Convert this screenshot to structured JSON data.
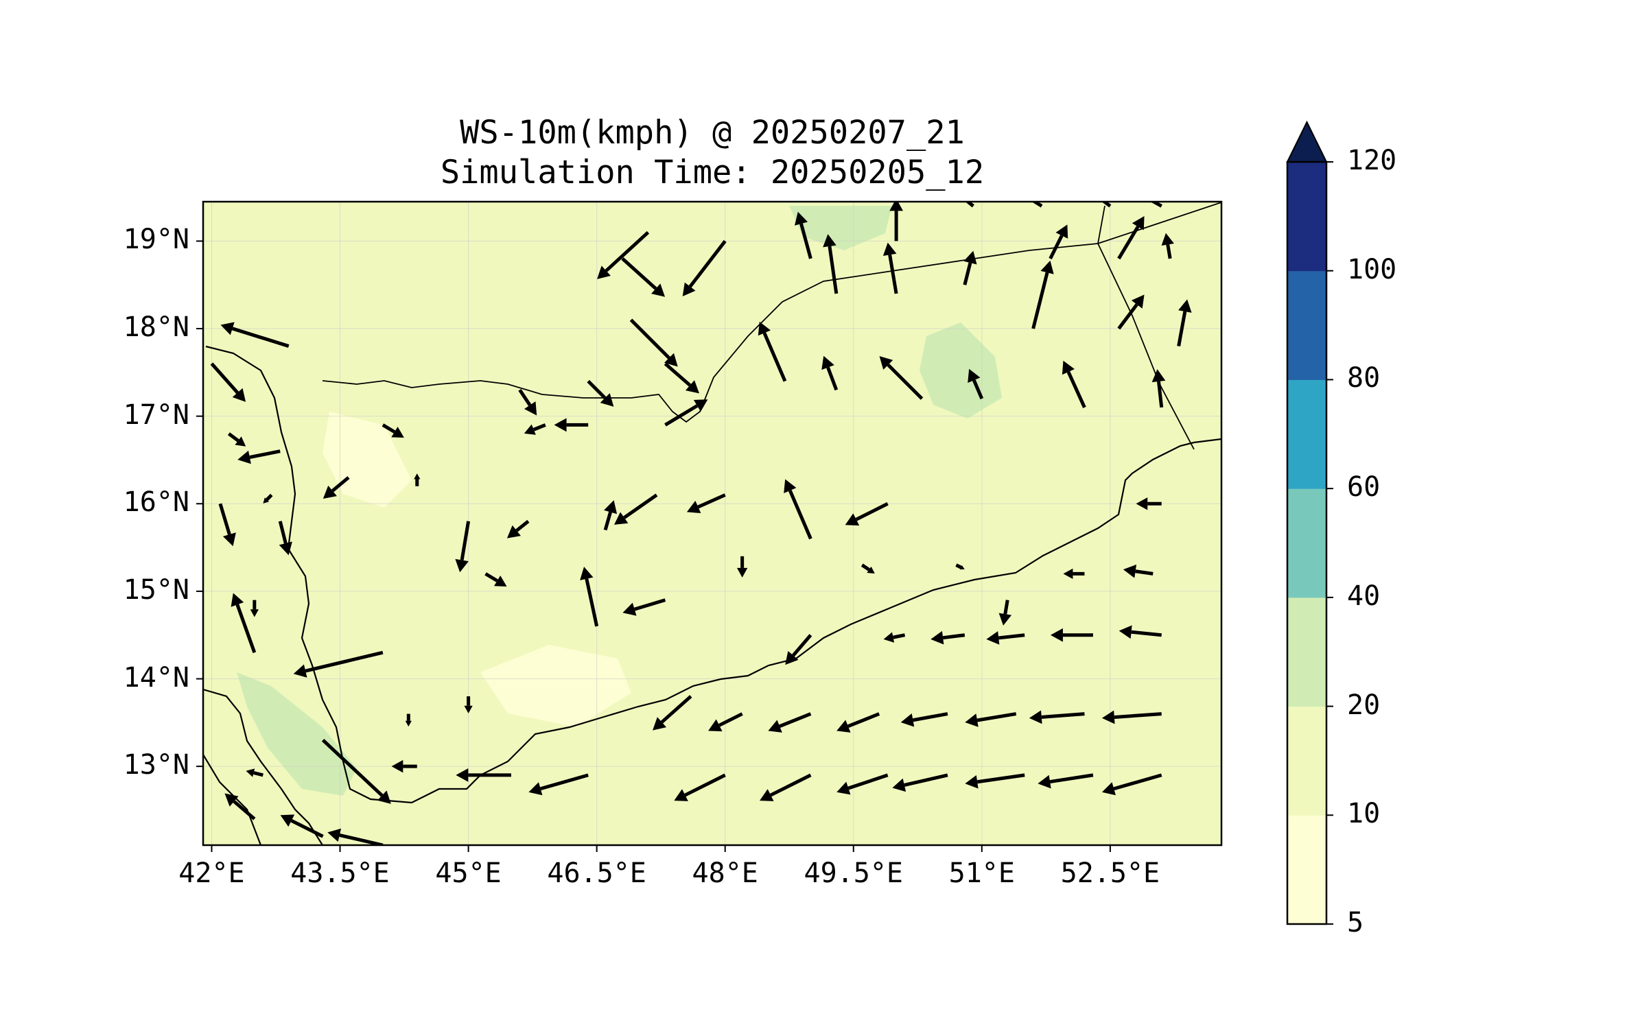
{
  "title": {
    "line1": "WS-10m(kmph) @ 20250207_21",
    "line2": "Simulation Time: 20250205_12"
  },
  "map": {
    "extent": {
      "lon": [
        41.9,
        53.8
      ],
      "lat": [
        12.1,
        19.45
      ]
    },
    "lat_ticks": [
      {
        "value": 19,
        "label": "19°N"
      },
      {
        "value": 18,
        "label": "18°N"
      },
      {
        "value": 17,
        "label": "17°N"
      },
      {
        "value": 16,
        "label": "16°N"
      },
      {
        "value": 15,
        "label": "15°N"
      },
      {
        "value": 14,
        "label": "14°N"
      },
      {
        "value": 13,
        "label": "13°N"
      }
    ],
    "lon_ticks": [
      {
        "value": 42,
        "label": "42°E"
      },
      {
        "value": 43.5,
        "label": "43.5°E"
      },
      {
        "value": 45,
        "label": "45°E"
      },
      {
        "value": 46.5,
        "label": "46.5°E"
      },
      {
        "value": 48,
        "label": "48°E"
      },
      {
        "value": 49.5,
        "label": "49.5°E"
      },
      {
        "value": 51,
        "label": "51°E"
      },
      {
        "value": 52.5,
        "label": "52.5°E"
      }
    ],
    "background_class_color": "#f0f8be",
    "shaded_regions": [
      {
        "level": "20-40",
        "color": "#d0ecb4",
        "name": "coastal-red-sea-strip"
      },
      {
        "level": "20-40",
        "color": "#d0ecb4",
        "name": "northern-desert-patch"
      },
      {
        "level": "20-40",
        "color": "#d0ecb4",
        "name": "eastern-interior-patch"
      },
      {
        "level": "5-10",
        "color": "#fdfed3",
        "name": "highland-low-wind-area"
      },
      {
        "level": "5-10",
        "color": "#fdfed3",
        "name": "southern-plateau-low-wind-area"
      }
    ]
  },
  "colorbar": {
    "levels": [
      {
        "from": 5,
        "to": 10,
        "color": "#fdfed3",
        "label": "5"
      },
      {
        "from": 10,
        "to": 20,
        "color": "#f0f8be",
        "label": "10"
      },
      {
        "from": 20,
        "to": 40,
        "color": "#d0ecb4",
        "label": "20"
      },
      {
        "from": 40,
        "to": 60,
        "color": "#78c9bb",
        "label": "40"
      },
      {
        "from": 60,
        "to": 80,
        "color": "#2fa5c5",
        "label": "60"
      },
      {
        "from": 80,
        "to": 100,
        "color": "#2563a8",
        "label": "80"
      },
      {
        "from": 100,
        "to": 120,
        "color": "#1c2c7f",
        "label": "100"
      }
    ],
    "top_label": "120",
    "extend_color": "#0c1e4f"
  },
  "chart_data": {
    "type": "vector-field",
    "title": "WS-10m(kmph) @ 20250207_21\nSimulation Time: 20250205_12",
    "units": "kmph",
    "quantity": "10 m wind speed with wind direction vectors",
    "xlabel": "",
    "ylabel": "",
    "xlim": [
      41.9,
      53.8
    ],
    "ylim": [
      12.1,
      19.45
    ],
    "contour_levels": [
      5,
      10,
      20,
      40,
      60,
      80,
      100,
      120
    ],
    "vectors": [
      {
        "lon": 42.0,
        "lat": 17.6,
        "u": 8,
        "v": -9
      },
      {
        "lon": 42.1,
        "lat": 16.0,
        "u": 3,
        "v": -10
      },
      {
        "lon": 42.2,
        "lat": 16.8,
        "u": 4,
        "v": -3
      },
      {
        "lon": 42.9,
        "lat": 17.8,
        "u": -16,
        "v": 5
      },
      {
        "lon": 42.8,
        "lat": 16.6,
        "u": -10,
        "v": -2
      },
      {
        "lon": 42.7,
        "lat": 16.1,
        "u": -2,
        "v": -2
      },
      {
        "lon": 42.8,
        "lat": 15.8,
        "u": 2,
        "v": -8
      },
      {
        "lon": 42.5,
        "lat": 14.9,
        "u": 0,
        "v": -4
      },
      {
        "lon": 42.5,
        "lat": 14.3,
        "u": -5,
        "v": 14
      },
      {
        "lon": 43.3,
        "lat": 13.3,
        "u": 16,
        "v": -15
      },
      {
        "lon": 42.6,
        "lat": 12.9,
        "u": -4,
        "v": 1
      },
      {
        "lon": 42.5,
        "lat": 12.4,
        "u": -7,
        "v": 6
      },
      {
        "lon": 43.3,
        "lat": 12.2,
        "u": -10,
        "v": 5
      },
      {
        "lon": 44.0,
        "lat": 14.3,
        "u": -21,
        "v": -5
      },
      {
        "lon": 44.3,
        "lat": 13.6,
        "u": 0,
        "v": -3
      },
      {
        "lon": 44.2,
        "lat": 13.0,
        "u": 0,
        "v": 0
      },
      {
        "lon": 44.0,
        "lat": 12.1,
        "u": -13,
        "v": 3
      },
      {
        "lon": 43.6,
        "lat": 16.3,
        "u": -6,
        "v": -5
      },
      {
        "lon": 44.0,
        "lat": 16.9,
        "u": 5,
        "v": -3
      },
      {
        "lon": 44.4,
        "lat": 16.2,
        "u": 0,
        "v": 3
      },
      {
        "lon": 45.0,
        "lat": 15.8,
        "u": -2,
        "v": -12
      },
      {
        "lon": 45.2,
        "lat": 15.2,
        "u": 5,
        "v": -3
      },
      {
        "lon": 45.0,
        "lat": 13.8,
        "u": 0,
        "v": -4
      },
      {
        "lon": 45.5,
        "lat": 12.9,
        "u": -13,
        "v": 0
      },
      {
        "lon": 46.4,
        "lat": 12.9,
        "u": -14,
        "v": -4
      },
      {
        "lon": 46.5,
        "lat": 14.6,
        "u": -3,
        "v": 14
      },
      {
        "lon": 45.7,
        "lat": 15.8,
        "u": -5,
        "v": -4
      },
      {
        "lon": 45.9,
        "lat": 16.9,
        "u": -5,
        "v": -2
      },
      {
        "lon": 46.4,
        "lat": 16.9,
        "u": -8,
        "v": 0
      },
      {
        "lon": 45.6,
        "lat": 17.3,
        "u": 4,
        "v": -6
      },
      {
        "lon": 46.4,
        "lat": 17.4,
        "u": 6,
        "v": -6
      },
      {
        "lon": 47.3,
        "lat": 16.9,
        "u": 10,
        "v": 6
      },
      {
        "lon": 47.3,
        "lat": 17.6,
        "u": 8,
        "v": -7
      },
      {
        "lon": 46.9,
        "lat": 18.1,
        "u": 11,
        "v": -11
      },
      {
        "lon": 46.8,
        "lat": 18.8,
        "u": 10,
        "v": -9
      },
      {
        "lon": 47.1,
        "lat": 19.1,
        "u": -12,
        "v": -11
      },
      {
        "lon": 48.0,
        "lat": 19.0,
        "u": -10,
        "v": -13
      },
      {
        "lon": 47.2,
        "lat": 16.1,
        "u": -10,
        "v": -7
      },
      {
        "lon": 46.6,
        "lat": 15.7,
        "u": 2,
        "v": 7
      },
      {
        "lon": 47.3,
        "lat": 14.9,
        "u": -10,
        "v": -3
      },
      {
        "lon": 48.2,
        "lat": 15.4,
        "u": 0,
        "v": -5
      },
      {
        "lon": 49.0,
        "lat": 15.6,
        "u": -6,
        "v": 14
      },
      {
        "lon": 48.0,
        "lat": 16.1,
        "u": -9,
        "v": -4
      },
      {
        "lon": 47.6,
        "lat": 13.8,
        "u": -9,
        "v": -8
      },
      {
        "lon": 48.0,
        "lat": 12.9,
        "u": -12,
        "v": -6
      },
      {
        "lon": 49.0,
        "lat": 12.9,
        "u": -12,
        "v": -6
      },
      {
        "lon": 49.9,
        "lat": 12.9,
        "u": -12,
        "v": -4
      },
      {
        "lon": 50.6,
        "lat": 12.9,
        "u": -13,
        "v": -3
      },
      {
        "lon": 51.5,
        "lat": 12.9,
        "u": -14,
        "v": -2
      },
      {
        "lon": 52.3,
        "lat": 12.9,
        "u": -13,
        "v": -2
      },
      {
        "lon": 53.1,
        "lat": 12.9,
        "u": -14,
        "v": -4
      },
      {
        "lon": 48.7,
        "lat": 17.4,
        "u": -6,
        "v": 14
      },
      {
        "lon": 49.3,
        "lat": 17.3,
        "u": -3,
        "v": 8
      },
      {
        "lon": 50.3,
        "lat": 17.2,
        "u": -10,
        "v": 10
      },
      {
        "lon": 49.3,
        "lat": 18.4,
        "u": -2,
        "v": 14
      },
      {
        "lon": 49.0,
        "lat": 18.8,
        "u": -3,
        "v": 11
      },
      {
        "lon": 50.0,
        "lat": 18.4,
        "u": -2,
        "v": 12
      },
      {
        "lon": 50.0,
        "lat": 19.0,
        "u": 0,
        "v": 10
      },
      {
        "lon": 50.9,
        "lat": 19.4,
        "u": -10,
        "v": 8
      },
      {
        "lon": 50.8,
        "lat": 18.5,
        "u": 2,
        "v": 8
      },
      {
        "lon": 51.0,
        "lat": 17.2,
        "u": -3,
        "v": 7
      },
      {
        "lon": 51.7,
        "lat": 19.4,
        "u": -8,
        "v": 5
      },
      {
        "lon": 52.5,
        "lat": 19.4,
        "u": -8,
        "v": 6
      },
      {
        "lon": 53.1,
        "lat": 19.4,
        "u": -9,
        "v": 5
      },
      {
        "lon": 51.6,
        "lat": 18.0,
        "u": 4,
        "v": 16
      },
      {
        "lon": 51.8,
        "lat": 18.8,
        "u": 4,
        "v": 8
      },
      {
        "lon": 52.6,
        "lat": 18.8,
        "u": 6,
        "v": 10
      },
      {
        "lon": 52.6,
        "lat": 18.0,
        "u": 6,
        "v": 8
      },
      {
        "lon": 52.2,
        "lat": 17.1,
        "u": -5,
        "v": 11
      },
      {
        "lon": 53.3,
        "lat": 17.8,
        "u": 2,
        "v": 11
      },
      {
        "lon": 53.2,
        "lat": 18.8,
        "u": -1,
        "v": 6
      },
      {
        "lon": 53.1,
        "lat": 17.1,
        "u": -1,
        "v": 9
      },
      {
        "lon": 49.9,
        "lat": 16.0,
        "u": -10,
        "v": -5
      },
      {
        "lon": 49.6,
        "lat": 15.3,
        "u": 3,
        "v": -2
      },
      {
        "lon": 50.7,
        "lat": 15.3,
        "u": 2,
        "v": -1
      },
      {
        "lon": 51.3,
        "lat": 14.9,
        "u": -1,
        "v": -6
      },
      {
        "lon": 52.2,
        "lat": 15.2,
        "u": -5,
        "v": 0
      },
      {
        "lon": 53.0,
        "lat": 15.2,
        "u": -7,
        "v": 1
      },
      {
        "lon": 53.1,
        "lat": 16.0,
        "u": -6,
        "v": 0
      },
      {
        "lon": 50.1,
        "lat": 14.5,
        "u": -5,
        "v": -1
      },
      {
        "lon": 50.8,
        "lat": 14.5,
        "u": -8,
        "v": -1
      },
      {
        "lon": 51.5,
        "lat": 14.5,
        "u": -9,
        "v": -1
      },
      {
        "lon": 52.3,
        "lat": 14.5,
        "u": -10,
        "v": 0
      },
      {
        "lon": 53.1,
        "lat": 14.5,
        "u": -10,
        "v": 1
      },
      {
        "lon": 49.0,
        "lat": 14.5,
        "u": -6,
        "v": -7
      },
      {
        "lon": 48.2,
        "lat": 13.6,
        "u": -8,
        "v": -4
      },
      {
        "lon": 49.0,
        "lat": 13.6,
        "u": -10,
        "v": -4
      },
      {
        "lon": 49.8,
        "lat": 13.6,
        "u": -10,
        "v": -4
      },
      {
        "lon": 50.6,
        "lat": 13.6,
        "u": -11,
        "v": -2
      },
      {
        "lon": 51.4,
        "lat": 13.6,
        "u": -12,
        "v": -2
      },
      {
        "lon": 52.2,
        "lat": 13.6,
        "u": -13,
        "v": -1
      },
      {
        "lon": 53.1,
        "lat": 13.6,
        "u": -14,
        "v": -1
      },
      {
        "lon": 44.4,
        "lat": 13.0,
        "u": -6,
        "v": 0
      }
    ]
  }
}
